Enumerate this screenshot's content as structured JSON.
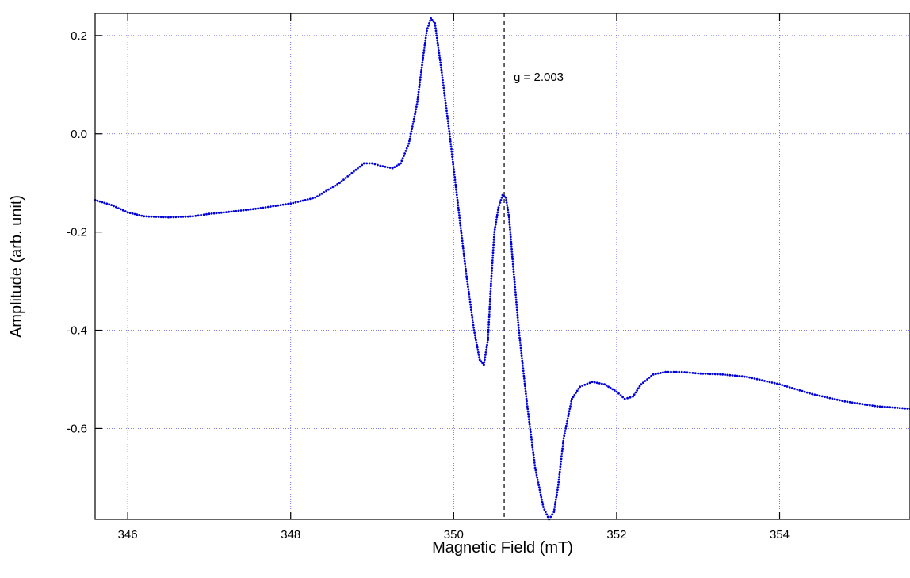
{
  "chart_data": {
    "type": "scatter",
    "title": "",
    "xlabel": "Magnetic Field (mT)",
    "ylabel": "Amplitude (arb. unit)",
    "xlim": [
      345.6,
      355.6
    ],
    "ylim": [
      -0.785,
      0.245
    ],
    "x_ticks": [
      346,
      348,
      350,
      352,
      354
    ],
    "x_tick_labels": [
      "346",
      "348",
      "350",
      "352",
      "354"
    ],
    "y_ticks": [
      0.2,
      0.0,
      -0.2,
      -0.4,
      -0.6
    ],
    "y_tick_labels": [
      "0.2",
      "0.0",
      "-0.2",
      "-0.4",
      "-0.6"
    ],
    "grid": true,
    "legend": "none",
    "colors": {
      "series": "#0000d8",
      "grid": "#5a5ae6",
      "marker_line": "#000000"
    },
    "reference_line": {
      "x": 350.62,
      "label": "g = 2.003",
      "style": "dashed"
    },
    "series": [
      {
        "x": [
          345.6,
          345.8,
          346.0,
          346.2,
          346.5,
          346.8,
          347.0,
          347.3,
          347.6,
          348.0,
          348.3,
          348.6,
          348.75,
          348.9,
          349.0,
          349.1,
          349.25,
          349.35,
          349.45,
          349.55,
          349.62,
          349.67,
          349.72,
          349.77,
          349.85,
          349.95,
          350.05,
          350.15,
          350.25,
          350.32,
          350.37,
          350.42,
          350.46,
          350.5,
          350.55,
          350.6,
          350.64,
          350.68,
          350.72,
          350.8,
          350.9,
          351.0,
          351.1,
          351.17,
          351.23,
          351.28,
          351.35,
          351.45,
          351.55,
          351.7,
          351.85,
          352.0,
          352.1,
          352.2,
          352.3,
          352.45,
          352.6,
          352.8,
          353.0,
          353.3,
          353.6,
          354.0,
          354.4,
          354.8,
          355.2,
          355.6
        ],
        "y": [
          -0.135,
          -0.145,
          -0.16,
          -0.168,
          -0.17,
          -0.168,
          -0.163,
          -0.158,
          -0.152,
          -0.142,
          -0.13,
          -0.1,
          -0.08,
          -0.06,
          -0.06,
          -0.065,
          -0.07,
          -0.06,
          -0.02,
          0.06,
          0.15,
          0.21,
          0.235,
          0.225,
          0.13,
          0.0,
          -0.14,
          -0.28,
          -0.4,
          -0.46,
          -0.47,
          -0.42,
          -0.3,
          -0.2,
          -0.15,
          -0.125,
          -0.13,
          -0.17,
          -0.25,
          -0.4,
          -0.55,
          -0.68,
          -0.76,
          -0.785,
          -0.77,
          -0.72,
          -0.62,
          -0.54,
          -0.515,
          -0.505,
          -0.51,
          -0.525,
          -0.54,
          -0.535,
          -0.51,
          -0.49,
          -0.485,
          -0.485,
          -0.488,
          -0.49,
          -0.495,
          -0.51,
          -0.53,
          -0.545,
          -0.555,
          -0.56
        ]
      }
    ]
  }
}
